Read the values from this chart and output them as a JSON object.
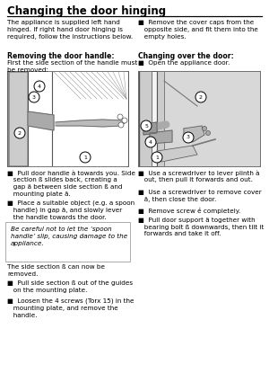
{
  "title": "Changing the door hinging",
  "bg_color": "#ffffff",
  "left_intro": "The appliance is supplied left hand\nhinged. If right hand door hinging is\nrequired, follow the instructions below.",
  "right_intro": "■  Remove the cover caps from the\n   opposite side, and fit them into the\n   empty holes.",
  "left_h2": "Removing the door handle:",
  "right_h2": "Changing over the door:",
  "left_sub": "First the side section of the handle must\nbe removed:",
  "right_sub": "■  Open the appliance door.",
  "bullet1": "■  Pull door handle à towards you. Side\n   section ß slides back, creating a\n   gap ä between side section ß and\n   mounting plate ã.",
  "bullet2": "■  Place a suitable object (e.g. a spoon\n   handle) in gap ä, and slowly lever\n   the handle towards the door.",
  "caution": "Be careful not to let the ‘spoon\nhandle’ slip, causing damage to the\nappliance.",
  "bullet3": "The side section ß can now be\nremoved.",
  "bullet4": "■  Pull side section ß out of the guides\n   on the mounting plate.",
  "bullet5": "■  Loosen the 4 screws (Torx 15) in the\n   mounting plate, and remove the\n   handle.",
  "rbullet1": "■  Use a screwdriver to lever plinth à\n   out, then pull it forwards and out.",
  "rbullet2": "■  Use a screwdriver to remove cover\n   ã, then close the door.",
  "rbullet3": "■  Remove screw é completely.",
  "rbullet4": "■  Pull door support ä together with\n   bearing bolt ß downwards, then tilt it\n   forwards and take it off."
}
